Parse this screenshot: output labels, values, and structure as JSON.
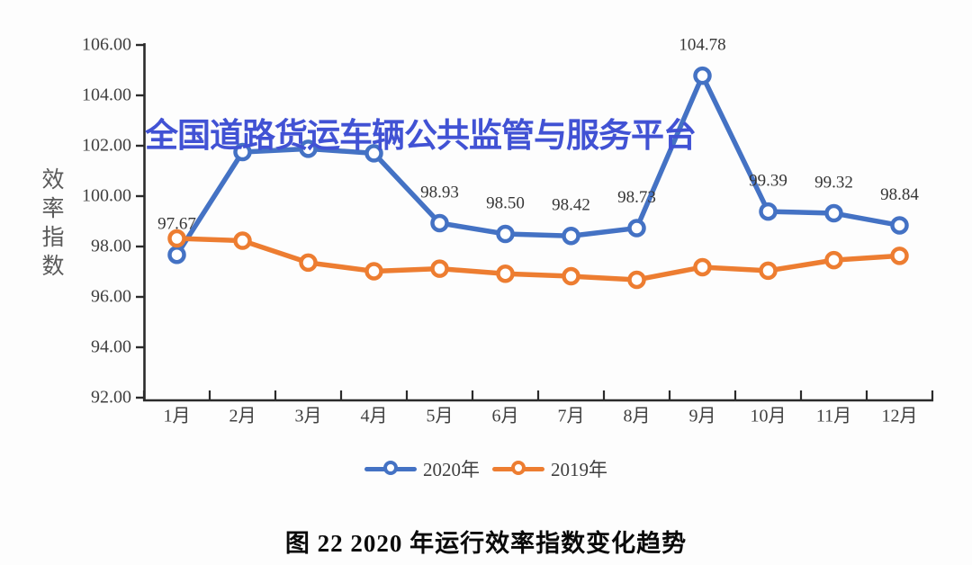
{
  "watermark": {
    "text": "全国道路货运车辆公共监管与服务平台",
    "color": "#4152d4"
  },
  "chart_data": {
    "type": "line",
    "title": "图 22 2020 年运行效率指数变化趋势",
    "ylabel": "效率指数",
    "xlabel": "",
    "grid": false,
    "legend_position": "bottom",
    "ylim": [
      92,
      106
    ],
    "y_ticks": [
      "92.00",
      "94.00",
      "96.00",
      "98.00",
      "100.00",
      "102.00",
      "104.00",
      "106.00"
    ],
    "categories": [
      "1月",
      "2月",
      "3月",
      "4月",
      "5月",
      "6月",
      "7月",
      "8月",
      "9月",
      "10月",
      "11月",
      "12月"
    ],
    "series": [
      {
        "name": "2020年",
        "color": "#4472C4",
        "values": [
          97.67,
          101.75,
          101.88,
          101.7,
          98.93,
          98.5,
          98.42,
          98.73,
          104.78,
          99.39,
          99.32,
          98.84
        ],
        "point_labels": [
          "97.67",
          "",
          "",
          "",
          "98.93",
          "98.50",
          "98.42",
          "98.73",
          "104.78",
          "99.39",
          "99.32",
          "98.84"
        ]
      },
      {
        "name": "2019年",
        "color": "#ED7D31",
        "values": [
          98.32,
          98.23,
          97.36,
          97.02,
          97.12,
          96.92,
          96.82,
          96.68,
          97.18,
          97.04,
          97.46,
          97.63
        ],
        "point_labels": [
          "",
          "",
          "",
          "",
          "",
          "",
          "",
          "",
          "",
          "",
          "",
          ""
        ]
      }
    ],
    "axis_color": "#2b2b2b",
    "tick_label_color": "#3f3f3f",
    "point_label_color": "#363636"
  }
}
